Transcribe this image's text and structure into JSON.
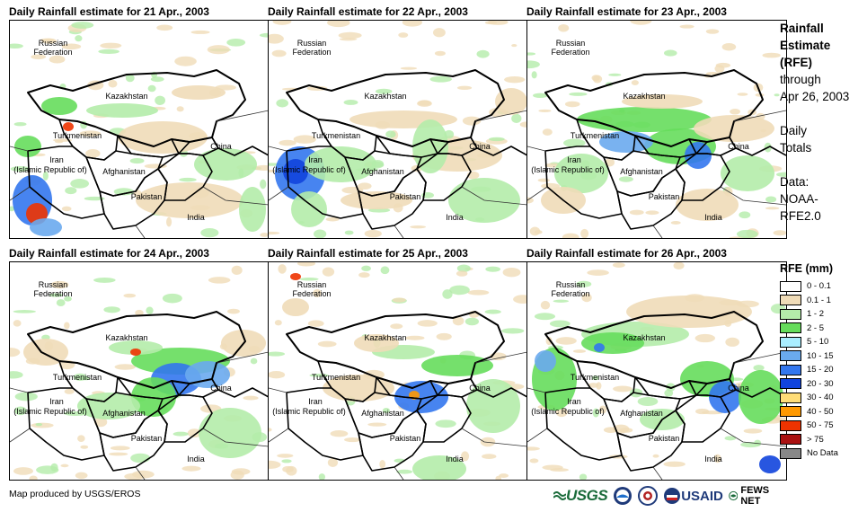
{
  "panels": [
    {
      "title": "Daily Rainfall estimate for 21 Apr., 2003"
    },
    {
      "title": "Daily Rainfall estimate for 22 Apr., 2003"
    },
    {
      "title": "Daily Rainfall estimate for 23 Apr., 2003"
    },
    {
      "title": "Daily Rainfall estimate for 24 Apr., 2003"
    },
    {
      "title": "Daily Rainfall estimate for 25 Apr., 2003"
    },
    {
      "title": "Daily Rainfall estimate for 26 Apr., 2003"
    }
  ],
  "map_labels": {
    "russia1": "Russian",
    "russia2": "Federation",
    "kazakhstan": "Kazakhstan",
    "turkmenistan": "Turkmenistan",
    "iran1": "Iran",
    "iran2": "(Islamic Republic of)",
    "afghanistan": "Afghanistan",
    "pakistan": "Pakistan",
    "china": "China",
    "india": "India"
  },
  "sidebar": {
    "title_line1": "Rainfall",
    "title_line2": "Estimate",
    "title_line3": "(RFE)",
    "through": "through",
    "date": "Apr 26, 2003",
    "daily": "Daily",
    "totals": "Totals",
    "data_label": "Data:",
    "data_source1": "NOAA-",
    "data_source2": "RFE2.0"
  },
  "legend": {
    "title": "RFE (mm)",
    "items": [
      {
        "label": "0 - 0.1",
        "color": "#ffffff"
      },
      {
        "label": "0.1 - 1",
        "color": "#f0dcb8"
      },
      {
        "label": "1 - 2",
        "color": "#b4ecaa"
      },
      {
        "label": "2 - 5",
        "color": "#66dd5c"
      },
      {
        "label": "5 - 10",
        "color": "#aaeeff"
      },
      {
        "label": "10 - 15",
        "color": "#6aaaee"
      },
      {
        "label": "15 - 20",
        "color": "#3377ee"
      },
      {
        "label": "20 - 30",
        "color": "#1144dd"
      },
      {
        "label": "30 - 40",
        "color": "#ffdd77"
      },
      {
        "label": "40 - 50",
        "color": "#ff9900"
      },
      {
        "label": "50 - 75",
        "color": "#ee3300"
      },
      {
        "label": "> 75",
        "color": "#aa1111"
      },
      {
        "label": "No Data",
        "color": "#888888"
      }
    ]
  },
  "footer": {
    "credit": "Map produced by USGS/EROS",
    "usgs": "USGS",
    "usaid": "USAID",
    "fews": "FEWS NET"
  }
}
